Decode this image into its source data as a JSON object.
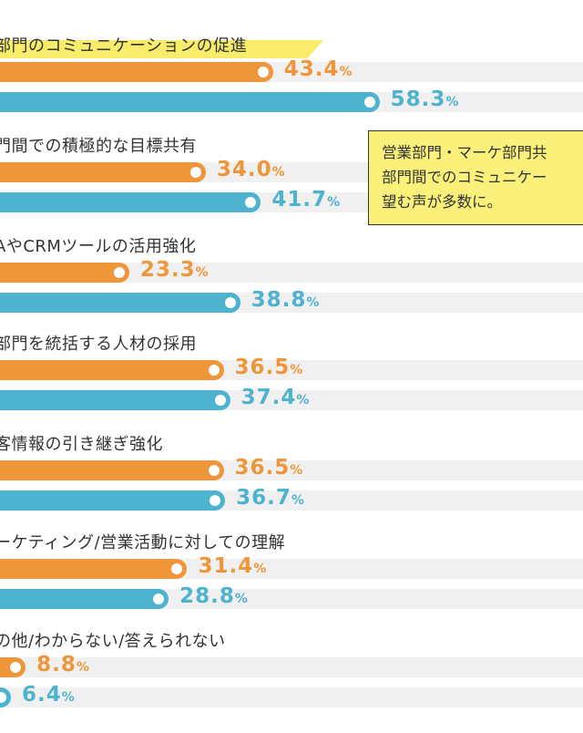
{
  "chart_data": {
    "type": "bar",
    "orientation": "horizontal",
    "title": "",
    "xlabel": "",
    "ylabel": "",
    "xlim": [
      0,
      100
    ],
    "categories": [
      "部門のコミュニケーションの促進",
      "門間での積極的な目標共有",
      "AやCRMツールの活用強化",
      "部門を統括する人材の採用",
      "客情報の引き継ぎ強化",
      "ーケティング/営業活動に対しての理解",
      "の他/わからない/答えられない"
    ],
    "series": [
      {
        "name": "series-orange",
        "color": "#f0963a",
        "values": [
          43.4,
          34.0,
          23.3,
          36.5,
          36.5,
          31.4,
          8.8
        ],
        "labels": [
          "43.4",
          "34.0",
          "23.3",
          "36.5",
          "36.5",
          "31.4",
          "8.8"
        ]
      },
      {
        "name": "series-blue",
        "color": "#4db3cf",
        "values": [
          58.3,
          41.7,
          38.8,
          37.4,
          36.7,
          28.8,
          6.4
        ],
        "labels": [
          "58.3",
          "41.7",
          "38.8",
          "37.4",
          "36.7",
          "28.8",
          "6.4"
        ]
      }
    ],
    "unit": "%",
    "highlighted_category_index": 0,
    "annotation": {
      "lines": [
        "営業部門・マーケ部門共",
        "部門間でのコミュニケー",
        "望む声が多数に。"
      ]
    }
  },
  "colors": {
    "track": "#f0f0f0",
    "highlight": "#f8ec6a",
    "note_bg": "#fbf07a"
  }
}
